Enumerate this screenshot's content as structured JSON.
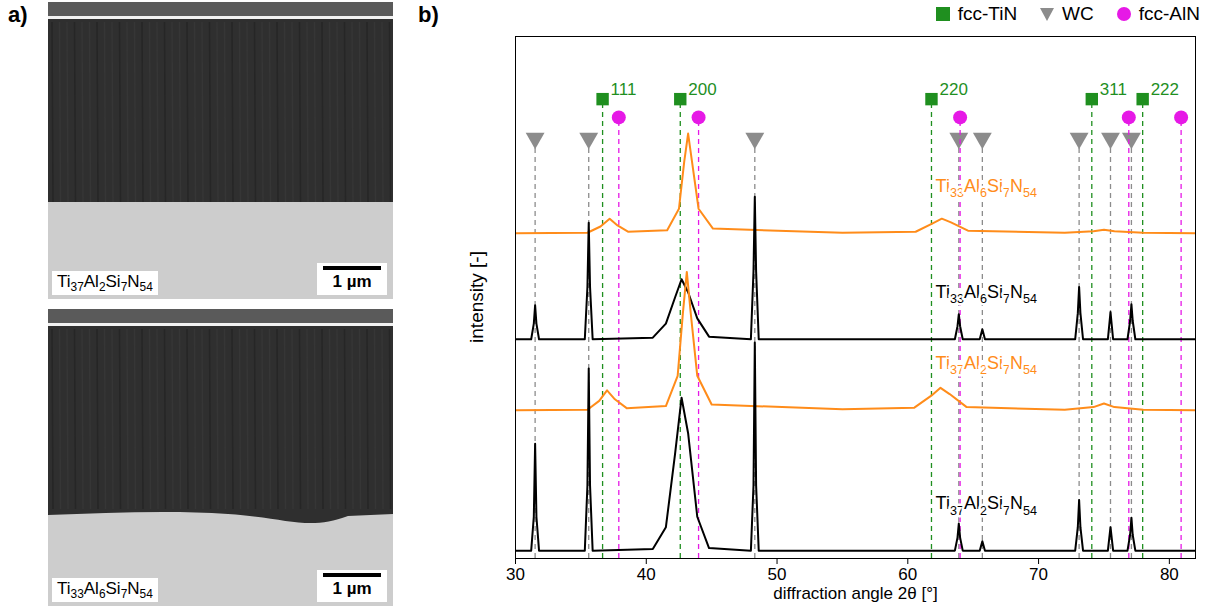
{
  "panel_a": {
    "label": "a)",
    "images": [
      {
        "caption": "Ti37Al2Si7N54",
        "scale_bar": "1 µm"
      },
      {
        "caption": "Ti33Al6Si7N54",
        "scale_bar": "1 µm"
      }
    ]
  },
  "chart_data": {
    "type": "line",
    "panel_label": "b)",
    "xlabel": "diffraction angle 2θ [°]",
    "ylabel": "intensity [-]",
    "xlim": [
      30,
      82
    ],
    "xticks": [
      30,
      40,
      50,
      60,
      70,
      80
    ],
    "ylim": [
      0,
      100
    ],
    "tick_labels": "x",
    "legend": "top-right",
    "series": [
      {
        "name": "Ti33Al6Si7N54",
        "color": "#ff8c1a",
        "x": [
          30,
          35.5,
          36.5,
          37.2,
          37.8,
          38.6,
          41.6,
          42.5,
          42.9,
          43.2,
          43.5,
          44.0,
          45.1,
          55,
          60.6,
          61.9,
          62.6,
          63.3,
          64.6,
          72,
          74.2,
          75,
          75.8,
          78,
          82
        ],
        "values": [
          62.3,
          62.4,
          63.6,
          65.1,
          63.8,
          62.6,
          62.9,
          67,
          76,
          81.4,
          76,
          67,
          63.2,
          62.4,
          62.6,
          64.2,
          65.1,
          64.4,
          62.8,
          62.4,
          62.7,
          63,
          62.7,
          62.4,
          62.3
        ]
      },
      {
        "name": "Ti33Al6Si7N54",
        "color": "#000000",
        "x": [
          30,
          31.2,
          31.4,
          31.5,
          31.6,
          31.8,
          35.3,
          35.5,
          35.6,
          35.7,
          35.9,
          40.5,
          41.5,
          42.2,
          42.7,
          43.2,
          43.9,
          44.8,
          48.0,
          48.2,
          48.3,
          48.4,
          48.6,
          63.6,
          63.8,
          63.9,
          64.0,
          64.2,
          65.5,
          65.7,
          65.9,
          72.8,
          73.0,
          73.1,
          73.2,
          73.4,
          75.3,
          75.5,
          75.7,
          76.8,
          77.0,
          77.1,
          77.2,
          77.4,
          82
        ],
        "values": [
          42,
          42,
          45,
          48.5,
          45,
          42,
          42,
          52,
          64.3,
          52,
          42,
          42.3,
          45,
          50,
          53.5,
          51,
          46,
          42.5,
          42,
          55,
          69.3,
          55,
          42,
          42,
          44.5,
          46.8,
          44.5,
          42,
          42,
          43.9,
          42,
          42,
          47,
          52,
          47,
          42,
          42,
          47.2,
          42,
          42,
          45.5,
          48.7,
          45.5,
          42,
          42
        ]
      },
      {
        "name": "Ti37Al2Si7N54",
        "color": "#ff8c1a",
        "x": [
          30,
          35.5,
          36.4,
          37.0,
          37.6,
          38.5,
          41.5,
          42.4,
          42.8,
          43.1,
          43.4,
          43.9,
          45,
          55,
          60.5,
          61.8,
          62.5,
          63.2,
          64.5,
          72,
          74.2,
          75,
          75.8,
          78,
          82
        ],
        "values": [
          28.4,
          28.5,
          30.2,
          32.2,
          30.5,
          28.8,
          29.2,
          35,
          47,
          54.9,
          47,
          35,
          29.5,
          28.6,
          28.9,
          31.2,
          32.7,
          31.5,
          29,
          28.5,
          29,
          29.7,
          29,
          28.5,
          28.4
        ]
      },
      {
        "name": "Ti37Al2Si7N54",
        "color": "#000000",
        "x": [
          30,
          31.2,
          31.4,
          31.5,
          31.6,
          31.8,
          35.3,
          35.5,
          35.6,
          35.7,
          35.9,
          40.5,
          41.5,
          42.2,
          42.7,
          43.2,
          43.9,
          44.8,
          48.0,
          48.2,
          48.3,
          48.4,
          48.6,
          63.6,
          63.8,
          63.9,
          64.0,
          64.2,
          65.5,
          65.7,
          65.9,
          72.8,
          73.0,
          73.1,
          73.2,
          73.4,
          75.3,
          75.5,
          75.7,
          76.8,
          77.0,
          77.1,
          77.2,
          77.4,
          82
        ],
        "values": [
          1.5,
          1.5,
          8,
          22,
          8,
          1.5,
          1.5,
          14,
          36.4,
          14,
          1.5,
          1.8,
          6,
          20,
          30.8,
          24,
          8,
          2,
          1.5,
          14,
          41.4,
          14,
          1.5,
          1.5,
          4,
          6.7,
          4,
          1.5,
          1.5,
          3.3,
          1.5,
          1.5,
          6,
          11.2,
          6,
          1.5,
          1.5,
          6,
          1.5,
          1.5,
          4.5,
          7.8,
          4.5,
          1.5,
          1.5
        ]
      }
    ],
    "reference_lines": [
      {
        "name": "fcc-TiN",
        "color": "#1f8f1f",
        "marker": "square",
        "positions": [
          36.66,
          42.6,
          61.81,
          74.07,
          77.96
        ],
        "hkl": [
          "111",
          "200",
          "220",
          "311",
          "222"
        ]
      },
      {
        "name": "WC",
        "color": "#8c8c8c",
        "marker": "triangle-down",
        "positions": [
          31.5,
          35.6,
          48.3,
          63.9,
          65.7,
          73.1,
          75.5,
          77.1
        ]
      },
      {
        "name": "fcc-AlN",
        "color": "#e619e6",
        "marker": "circle",
        "positions": [
          37.9,
          44.0,
          64.0,
          76.9,
          80.9
        ]
      }
    ]
  }
}
